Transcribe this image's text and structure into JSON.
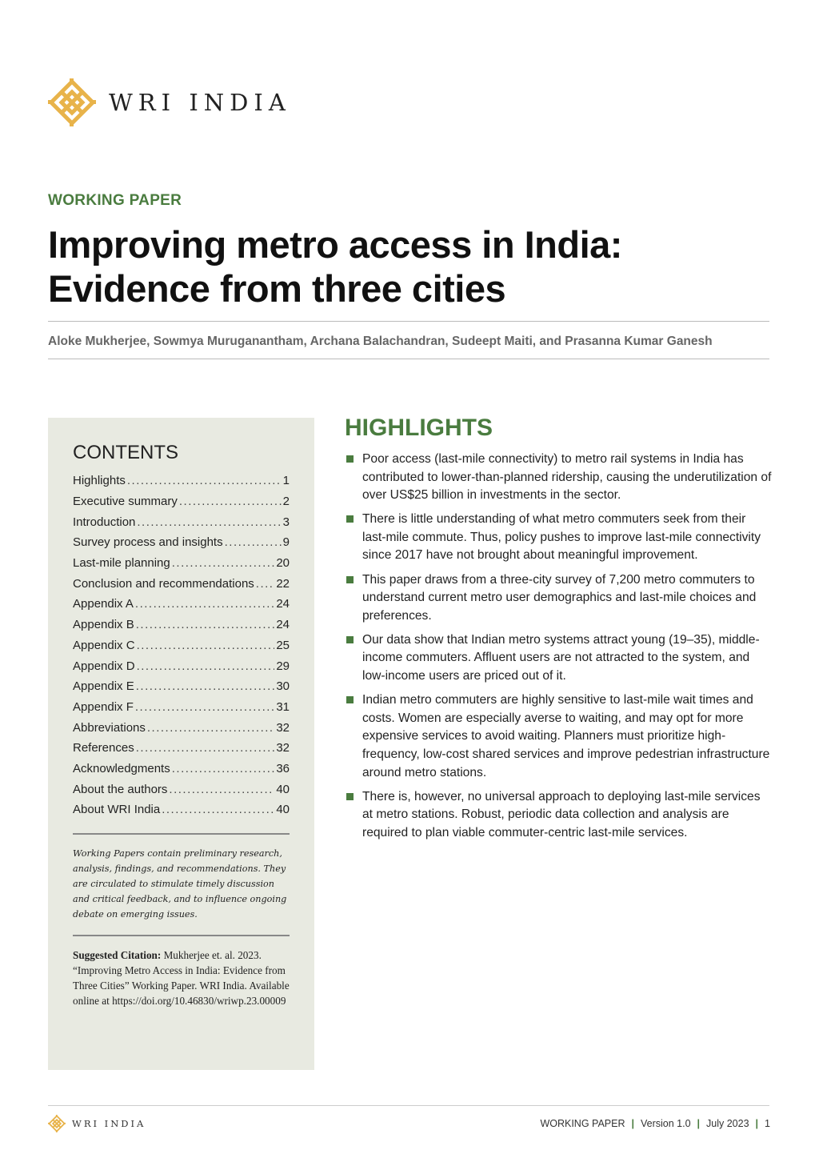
{
  "brand": {
    "name": "WRI INDIA",
    "color": "#e8b34a"
  },
  "kicker": "WORKING PAPER",
  "title_line1": "Improving metro access in India:",
  "title_line2": "Evidence from three cities",
  "authors": "Aloke Mukherjee, Sowmya Muruganantham, Archana Balachandran, Sudeept Maiti, and Prasanna Kumar Ganesh",
  "contents": {
    "heading": "CONTENTS",
    "items": [
      {
        "label": "Highlights",
        "page": "1"
      },
      {
        "label": "Executive summary",
        "page": "2"
      },
      {
        "label": "Introduction",
        "page": "3"
      },
      {
        "label": "Survey process and insights",
        "page": "9"
      },
      {
        "label": "Last-mile planning",
        "page": "20"
      },
      {
        "label": "Conclusion and recommendations",
        "page": "22"
      },
      {
        "label": "Appendix A",
        "page": "24"
      },
      {
        "label": "Appendix B",
        "page": "24"
      },
      {
        "label": "Appendix C",
        "page": "25"
      },
      {
        "label": "Appendix D",
        "page": "29"
      },
      {
        "label": "Appendix E",
        "page": "30"
      },
      {
        "label": "Appendix F",
        "page": "31"
      },
      {
        "label": "Abbreviations",
        "page": "32"
      },
      {
        "label": "References",
        "page": "32"
      },
      {
        "label": "Acknowledgments",
        "page": "36"
      },
      {
        "label": "About the authors",
        "page": "40"
      },
      {
        "label": "About WRI India",
        "page": "40"
      }
    ],
    "note": "Working Papers contain preliminary research, analysis, findings, and recommendations. They are circulated to stimulate timely discussion and critical feedback, and to influence ongoing debate on emerging issues.",
    "citation_label": "Suggested Citation:",
    "citation_text": " Mukherjee et. al. 2023. “Improving Metro Access in India: Evidence from Three Cities” Working Paper. WRI India. Available online at https://doi.org/10.46830/wriwp.23.00009"
  },
  "highlights": {
    "heading": "HIGHLIGHTS",
    "items": [
      "Poor access (last-mile connectivity) to metro rail systems in India has contributed to lower-than-planned ridership, causing the underutilization of over US$25 billion in investments in the sector.",
      "There is little understanding of what metro commuters seek from their last-mile commute. Thus, policy pushes to improve last-mile connectivity since 2017 have not brought about meaningful improvement.",
      "This paper draws from a three-city survey of 7,200 metro commuters to understand current metro user demographics and last-mile choices and preferences.",
      "Our data show that Indian metro systems attract young (19–35), middle-income commuters. Affluent users are not attracted to the system, and low-income users are priced out of it.",
      "Indian metro commuters are highly sensitive to last-mile wait times and costs. Women are especially averse to waiting, and may opt for more expensive services to avoid waiting. Planners must prioritize high-frequency, low-cost shared services and improve pedestrian infrastructure around metro stations.",
      "There is, however, no universal approach to deploying last-mile services at metro stations. Robust, periodic data collection and analysis are required to plan viable commuter-centric last-mile services."
    ]
  },
  "footer": {
    "brand": "WRI INDIA",
    "type": "WORKING PAPER",
    "version": "Version 1.0",
    "date": "July 2023",
    "page": "1",
    "separator": "|"
  },
  "colors": {
    "accent": "#4a7c3f",
    "panel": "#e8eae1"
  }
}
